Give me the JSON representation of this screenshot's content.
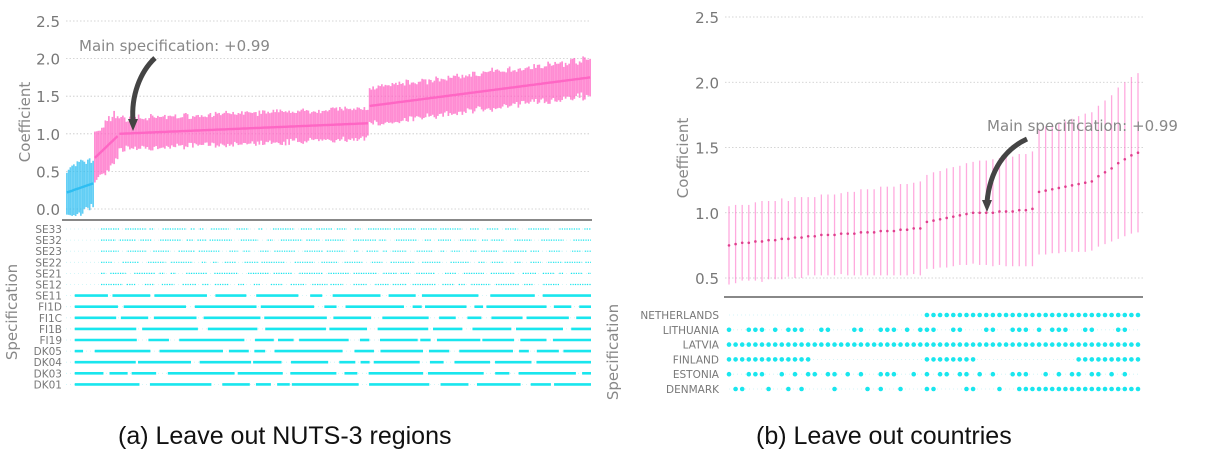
{
  "chart_data": [
    {
      "type": "specification-curve",
      "caption": "(a) Leave out NUTS-3 regions",
      "ylabel": "Coefficient",
      "spec_label": "Specification",
      "ylim": [
        -0.15,
        2.5
      ],
      "yticks": [
        "0.0",
        "0.5",
        "1.0",
        "1.5",
        "2.0",
        "2.5"
      ],
      "annotation": "Main specification: +0.99",
      "main_spec_value": 0.99,
      "grid": true,
      "n_specs": 300,
      "colors": {
        "significant": "#ff66c4",
        "not_significant": "#2ebef2",
        "dots": "#19e6ee",
        "axis": "#888888"
      },
      "segments": [
        {
          "name_key": "not_significant",
          "from": 0,
          "to": 16,
          "y_start": 0.22,
          "y_end": 0.34,
          "ci_half": 0.32
        },
        {
          "name_key": "significant",
          "from": 16,
          "to": 30,
          "y_start": 0.68,
          "y_end": 0.97,
          "ci_half": 0.32
        },
        {
          "name_key": "significant",
          "from": 30,
          "to": 173,
          "y_start": 1.0,
          "y_end": 1.14,
          "ci_half": 0.2
        },
        {
          "name_key": "significant",
          "from": 173,
          "to": 300,
          "y_start": 1.37,
          "y_end": 1.75,
          "ci_half": 0.24
        }
      ],
      "regions": [
        "SE33",
        "SE32",
        "SE23",
        "SE22",
        "SE21",
        "SE12",
        "SE11",
        "FI1D",
        "FI1C",
        "FI1B",
        "FI19",
        "DK05",
        "DK04",
        "DK03",
        "DK01"
      ]
    },
    {
      "type": "specification-curve",
      "caption": "(b) Leave out countries",
      "ylabel": "Coefficient",
      "spec_label": "Specification",
      "ylim": [
        0.35,
        2.5
      ],
      "yticks": [
        "0.5",
        "1.0",
        "1.5",
        "2.0",
        "2.5"
      ],
      "annotation": "Main specification: +0.99",
      "main_spec_value": 0.99,
      "grid": true,
      "colors": {
        "line": "#ff66c4",
        "dots": "#19e6ee",
        "axis": "#888888"
      },
      "countries": [
        "NETHERLANDS",
        "LITHUANIA",
        "LATVIA",
        "FINLAND",
        "ESTONIA",
        "DENMARK"
      ],
      "n_specs": 63,
      "values": [
        0.75,
        0.76,
        0.77,
        0.77,
        0.78,
        0.78,
        0.79,
        0.79,
        0.8,
        0.8,
        0.81,
        0.81,
        0.82,
        0.82,
        0.83,
        0.83,
        0.83,
        0.84,
        0.84,
        0.84,
        0.85,
        0.85,
        0.85,
        0.86,
        0.86,
        0.86,
        0.87,
        0.87,
        0.88,
        0.88,
        0.93,
        0.94,
        0.95,
        0.96,
        0.97,
        0.98,
        0.99,
        1.0,
        1.0,
        1.0,
        1.0,
        1.01,
        1.01,
        1.01,
        1.02,
        1.02,
        1.03,
        1.16,
        1.17,
        1.18,
        1.19,
        1.2,
        1.21,
        1.22,
        1.23,
        1.24,
        1.28,
        1.31,
        1.34,
        1.38,
        1.41,
        1.44,
        1.46
      ],
      "ci_half": [
        0.3,
        0.3,
        0.29,
        0.29,
        0.3,
        0.31,
        0.3,
        0.3,
        0.31,
        0.29,
        0.31,
        0.31,
        0.3,
        0.3,
        0.31,
        0.31,
        0.31,
        0.31,
        0.32,
        0.32,
        0.33,
        0.33,
        0.33,
        0.34,
        0.34,
        0.34,
        0.35,
        0.35,
        0.35,
        0.36,
        0.36,
        0.37,
        0.37,
        0.38,
        0.38,
        0.38,
        0.39,
        0.39,
        0.4,
        0.4,
        0.41,
        0.41,
        0.42,
        0.42,
        0.43,
        0.43,
        0.44,
        0.48,
        0.49,
        0.49,
        0.5,
        0.5,
        0.51,
        0.52,
        0.53,
        0.53,
        0.54,
        0.55,
        0.56,
        0.58,
        0.59,
        0.6,
        0.61
      ]
    }
  ]
}
